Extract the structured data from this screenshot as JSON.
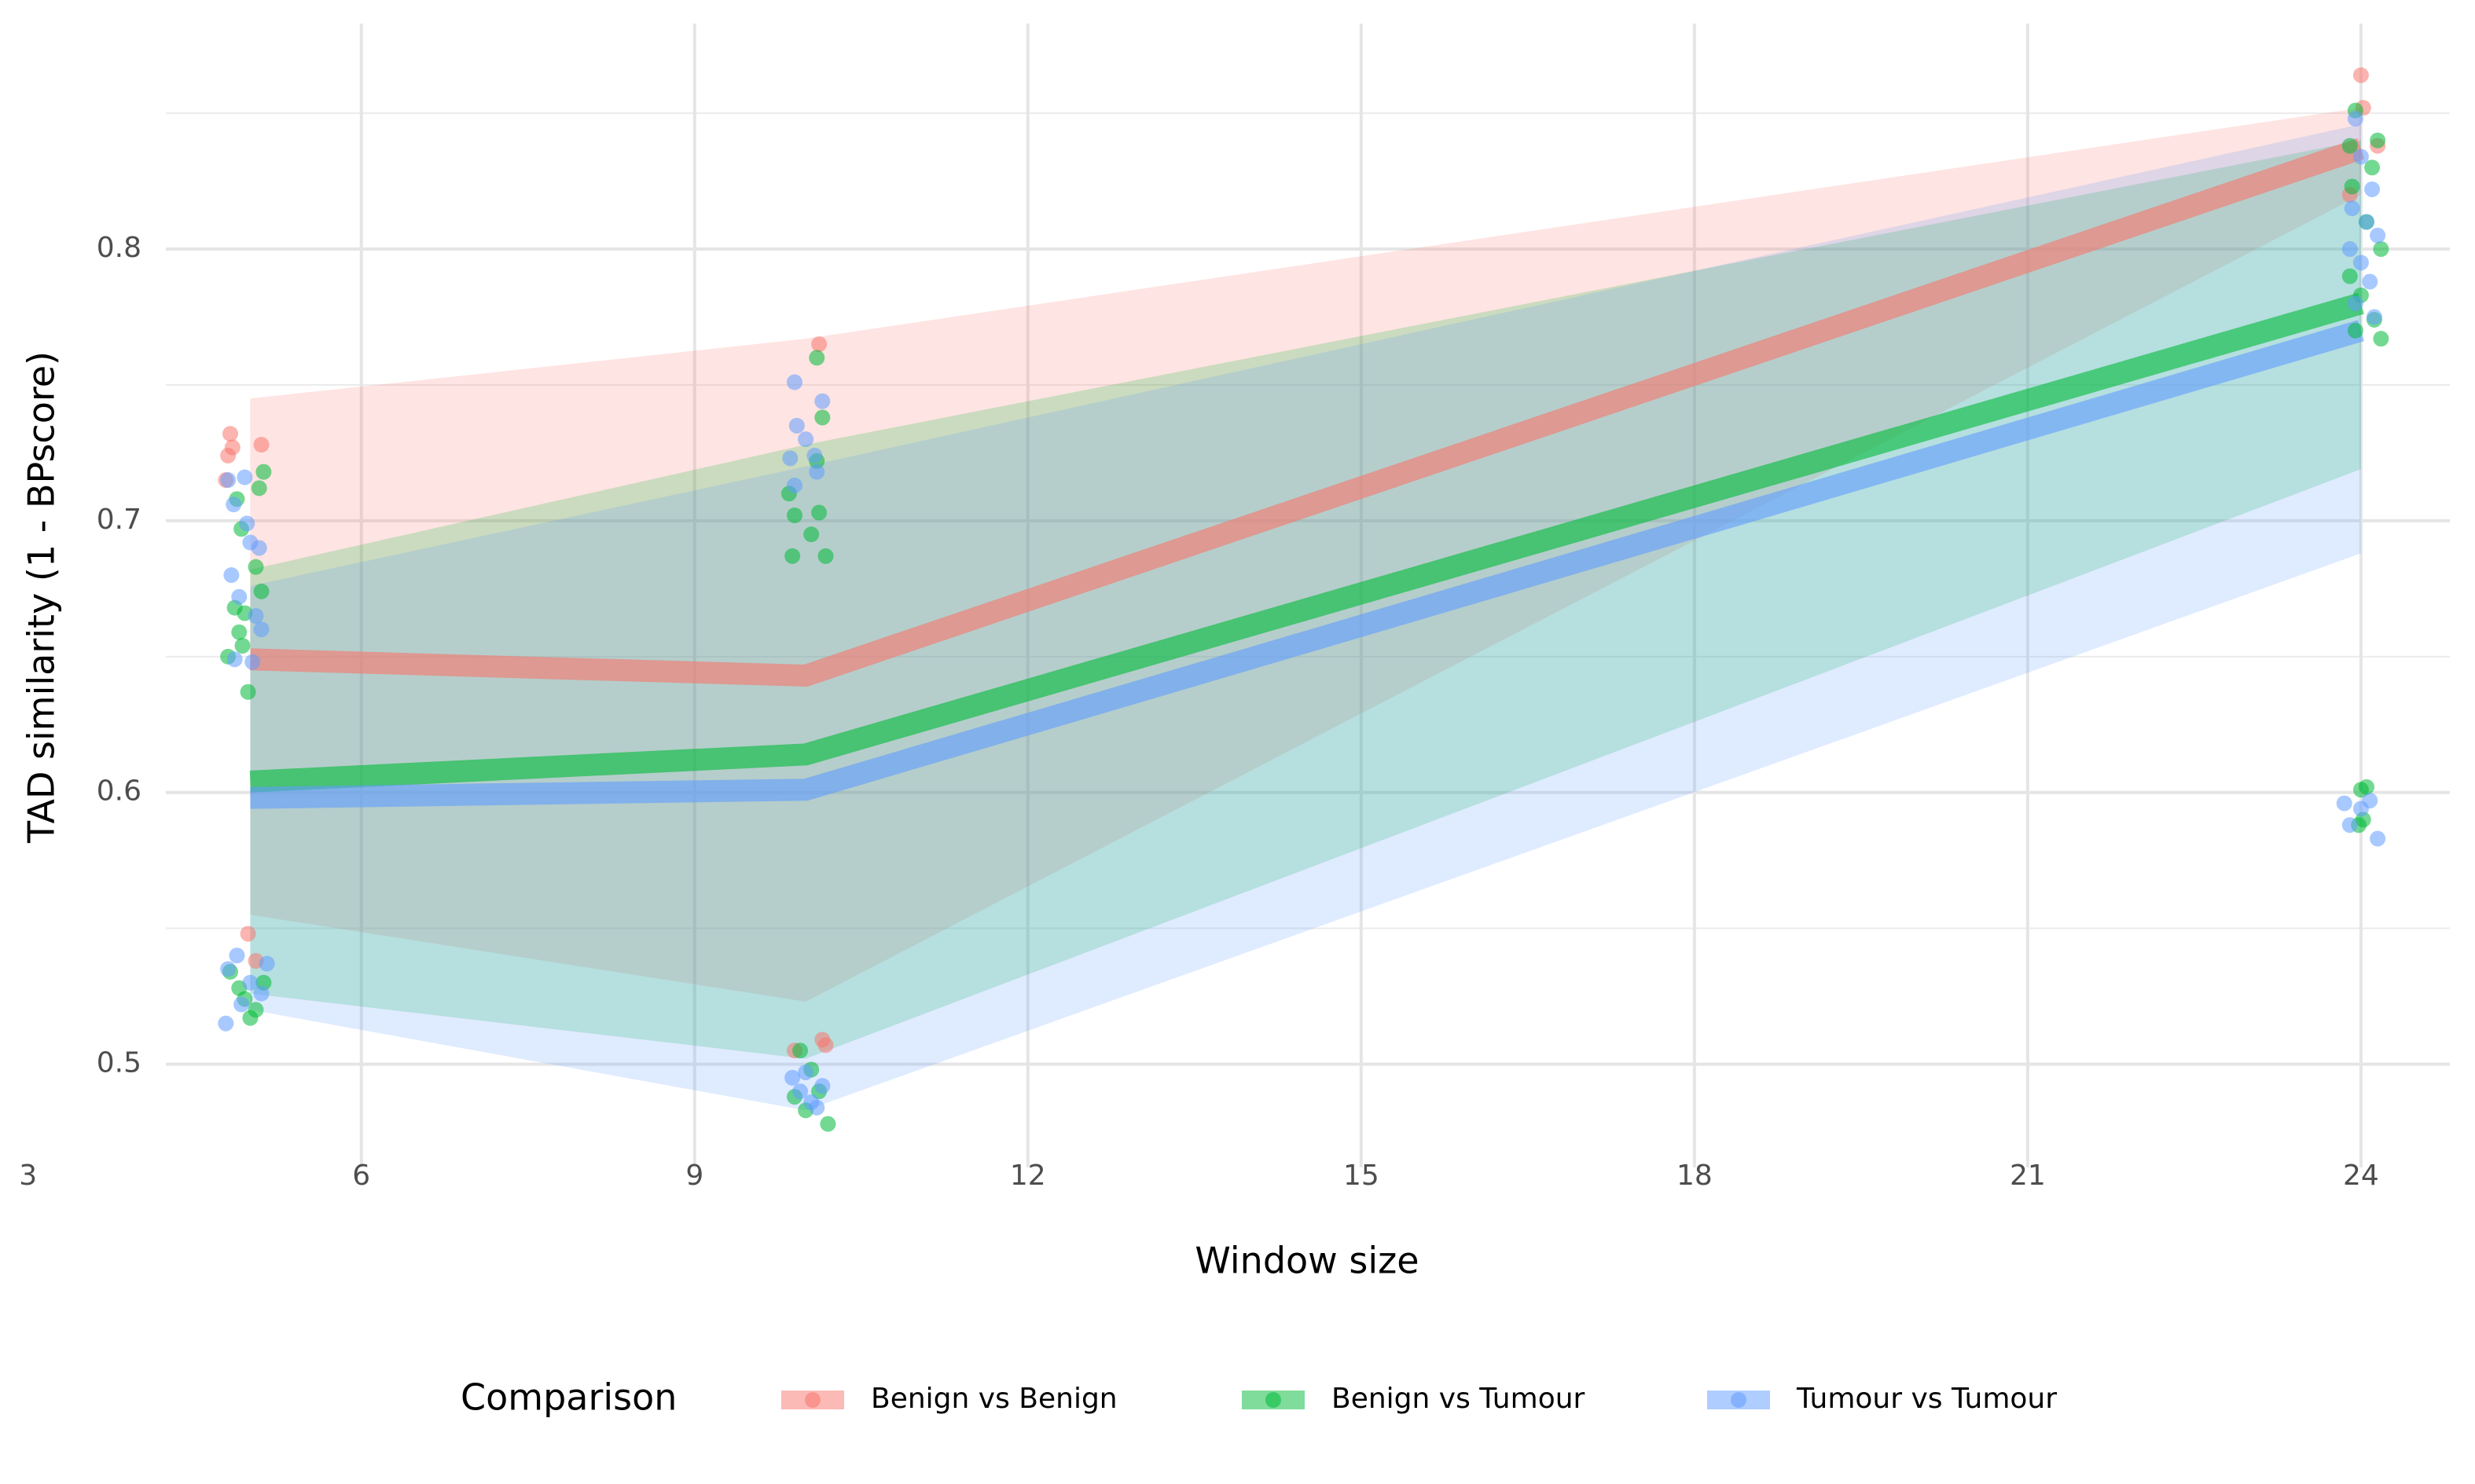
{
  "chart_data": {
    "type": "line",
    "x_label": "Window size",
    "y_label": "TAD similarity (1 - BPscore)",
    "legend_title": "Comparison",
    "legend_position": "bottom",
    "grid": true,
    "x": [
      5,
      10,
      24
    ],
    "xlim": [
      4.24,
      24.8
    ],
    "xticks": [
      3,
      6,
      9,
      12,
      15,
      18,
      21,
      24
    ],
    "ylim": [
      0.462,
      0.883
    ],
    "yticks": [
      0.5,
      0.6,
      0.7,
      0.8
    ],
    "y_minor_ticks": [
      0.55,
      0.65,
      0.75,
      0.85
    ],
    "series": [
      {
        "name": "Benign vs Benign",
        "color": "#F8766D",
        "values": [
          0.649,
          0.643,
          0.837
        ],
        "lower": [
          0.555,
          0.523,
          0.82
        ],
        "upper": [
          0.745,
          0.767,
          0.852
        ],
        "points": {
          "x": [
            4.82,
            4.8,
            4.84,
            5.1,
            4.78,
            4.98,
            5.05,
            10.12,
            10.15,
            10.18,
            9.9,
            24.0,
            24.02,
            24.15,
            23.9
          ],
          "y": [
            0.732,
            0.724,
            0.727,
            0.728,
            0.715,
            0.548,
            0.538,
            0.765,
            0.509,
            0.507,
            0.505,
            0.864,
            0.852,
            0.838,
            0.82
          ]
        }
      },
      {
        "name": "Benign vs Tumour",
        "color": "#00BA38",
        "values": [
          0.604,
          0.614,
          0.78
        ],
        "lower": [
          0.526,
          0.502,
          0.719
        ],
        "upper": [
          0.682,
          0.728,
          0.84
        ],
        "points": {
          "x": [
            5.12,
            5.08,
            4.88,
            4.92,
            5.05,
            4.86,
            4.95,
            5.1,
            4.9,
            4.93,
            4.8,
            4.98,
            4.82,
            4.9,
            5.05,
            5.12,
            4.95,
            5.0,
            10.1,
            10.15,
            9.85,
            9.9,
            10.05,
            10.12,
            9.88,
            10.18,
            10.1,
            9.95,
            10.05,
            10.12,
            9.9,
            10.2,
            10.0,
            23.95,
            24.15,
            23.9,
            24.1,
            23.92,
            24.05,
            24.18,
            23.9,
            24.0,
            24.12,
            23.95,
            24.18,
            24.05,
            24.0,
            24.02,
            23.98
          ],
          "y": [
            0.718,
            0.712,
            0.708,
            0.697,
            0.683,
            0.668,
            0.666,
            0.674,
            0.659,
            0.654,
            0.65,
            0.637,
            0.534,
            0.528,
            0.52,
            0.53,
            0.524,
            0.517,
            0.76,
            0.738,
            0.71,
            0.702,
            0.695,
            0.703,
            0.687,
            0.687,
            0.722,
            0.505,
            0.498,
            0.49,
            0.488,
            0.478,
            0.483,
            0.851,
            0.84,
            0.838,
            0.83,
            0.823,
            0.81,
            0.8,
            0.79,
            0.783,
            0.774,
            0.77,
            0.767,
            0.602,
            0.601,
            0.59,
            0.588
          ]
        }
      },
      {
        "name": "Tumour vs Tumour",
        "color": "#619CFF",
        "values": [
          0.598,
          0.601,
          0.77
        ],
        "lower": [
          0.52,
          0.483,
          0.688
        ],
        "upper": [
          0.676,
          0.72,
          0.846
        ],
        "points": {
          "x": [
            4.8,
            4.95,
            4.85,
            4.97,
            5.0,
            5.08,
            4.83,
            4.9,
            5.05,
            5.1,
            5.02,
            4.86,
            4.8,
            4.88,
            5.0,
            5.1,
            4.92,
            4.78,
            5.15,
            9.9,
            10.15,
            9.92,
            10.0,
            10.08,
            9.86,
            10.1,
            9.9,
            9.88,
            9.95,
            10.05,
            10.1,
            10.15,
            10.0,
            23.95,
            24.0,
            24.1,
            23.92,
            24.05,
            24.15,
            23.9,
            24.0,
            24.08,
            23.95,
            24.12,
            23.85,
            23.9,
            24.0,
            24.08,
            24.15
          ],
          "y": [
            0.715,
            0.716,
            0.706,
            0.699,
            0.692,
            0.69,
            0.68,
            0.672,
            0.665,
            0.66,
            0.648,
            0.649,
            0.535,
            0.54,
            0.53,
            0.526,
            0.522,
            0.515,
            0.537,
            0.751,
            0.744,
            0.735,
            0.73,
            0.724,
            0.723,
            0.718,
            0.713,
            0.495,
            0.49,
            0.486,
            0.484,
            0.492,
            0.497,
            0.848,
            0.834,
            0.822,
            0.815,
            0.81,
            0.805,
            0.8,
            0.795,
            0.788,
            0.78,
            0.775,
            0.596,
            0.588,
            0.594,
            0.597,
            0.583
          ]
        }
      }
    ]
  }
}
